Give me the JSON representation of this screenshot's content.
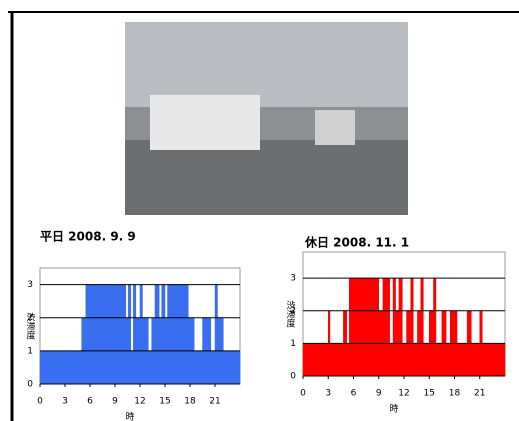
{
  "chart_data": [
    {
      "type": "step",
      "title": "平日 2008. 9. 9",
      "xlabel": "時",
      "ylabel": "渋滞度",
      "color": "#3a6ef0",
      "x": [
        0,
        5,
        5.5,
        10.3,
        10.6,
        10.9,
        11.2,
        11.5,
        12,
        12.3,
        13,
        13.4,
        13.8,
        14.3,
        14.6,
        15,
        15.3,
        17.8,
        18.5,
        19.5,
        20.5,
        21,
        21.3,
        22
      ],
      "values": [
        1,
        2,
        3,
        2,
        3,
        1,
        3,
        2,
        3,
        2,
        1,
        2,
        3,
        2,
        3,
        2,
        3,
        2,
        1,
        2,
        1,
        3,
        2,
        1
      ],
      "xlim": [
        0,
        24
      ],
      "ylim": [
        0,
        3.5
      ],
      "xticks": [
        0,
        3,
        6,
        9,
        12,
        15,
        18,
        21
      ],
      "yticks": [
        0,
        1,
        2,
        3
      ]
    },
    {
      "type": "step",
      "title": "休日 2008. 11. 1",
      "xlabel": "時",
      "ylabel": "渋滞度",
      "color": "#ff0000",
      "x": [
        0,
        3,
        3.2,
        4.8,
        5.2,
        5.5,
        9,
        9.5,
        10.3,
        10.7,
        11,
        11.4,
        11.8,
        12.3,
        12.8,
        13.1,
        13.6,
        14,
        14.3,
        15,
        15.5,
        15.8,
        16.5,
        17,
        17.5,
        18.3,
        19.5,
        20,
        21,
        21.3
      ],
      "values": [
        1,
        2,
        1,
        2,
        1,
        3,
        2,
        3,
        1,
        3,
        2,
        3,
        1,
        2,
        3,
        1,
        2,
        3,
        1,
        2,
        3,
        1,
        2,
        1,
        2,
        1,
        2,
        1,
        2,
        1
      ],
      "xlim": [
        0,
        24
      ],
      "ylim": [
        0,
        3.8
      ],
      "xticks": [
        0,
        3,
        6,
        9,
        12,
        15,
        18,
        21
      ],
      "yticks": [
        0,
        1,
        2,
        3
      ]
    }
  ]
}
